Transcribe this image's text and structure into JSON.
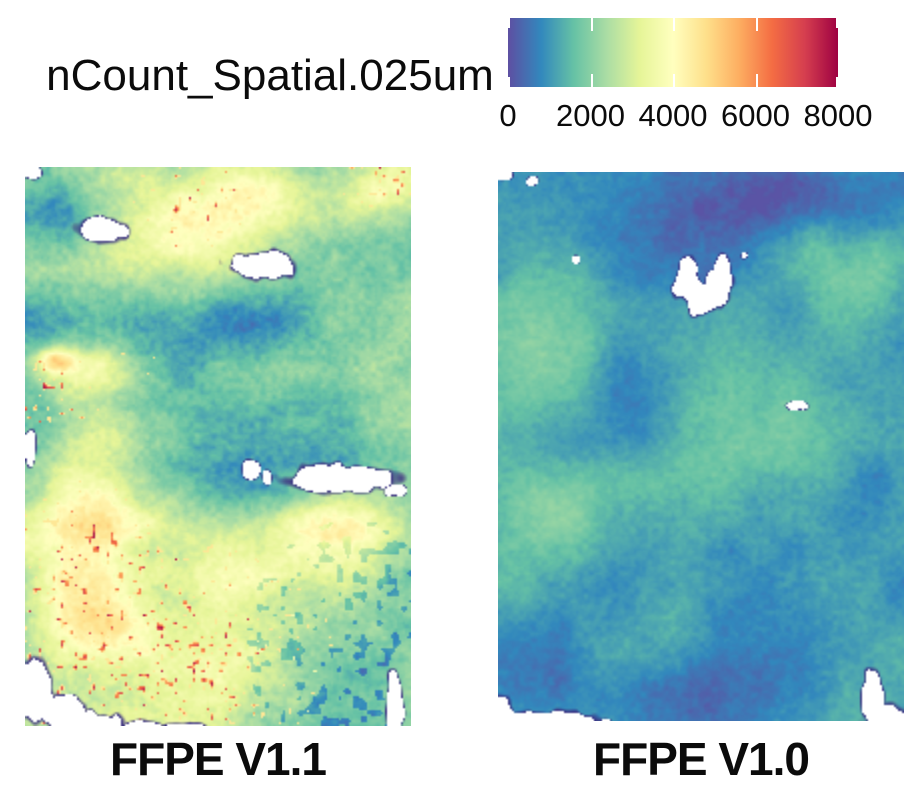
{
  "figure": {
    "title": "nCount_Spatial.025um",
    "colorbar": {
      "min": 0,
      "max": 8000,
      "ticks": [
        0,
        2000,
        4000,
        6000,
        8000
      ],
      "tick_labels": [
        "0",
        "2000",
        "4000",
        "6000",
        "8000"
      ],
      "palette_name": "Spectral (reversed)",
      "colors": [
        "#5E4FA2",
        "#3288BD",
        "#66C2A5",
        "#ABDDA4",
        "#E6F598",
        "#FFFFBF",
        "#FEE08B",
        "#FDAE61",
        "#F46D43",
        "#D53E4F",
        "#9E0142"
      ],
      "hole_outline_color": "#3A2F82",
      "hole_fill_color": "#FFFFFF"
    },
    "panels": [
      {
        "id": "ffpe_v11",
        "label": "FFPE V1.1",
        "canvas_id": "p0",
        "typical_count_est": 2100,
        "high_count_est": 8000,
        "render": {
          "seed": 11,
          "base": 2100,
          "amp": 1100,
          "grain": 700,
          "sx": 5,
          "sy": 11,
          "blobs": [
            [
              0.43,
              0.1,
              0.22,
              0.1,
              1900
            ],
            [
              0.6,
              0.04,
              0.14,
              0.06,
              1400
            ],
            [
              0.92,
              0.03,
              0.12,
              0.06,
              1500
            ],
            [
              0.08,
              0.05,
              0.1,
              0.07,
              -1000
            ],
            [
              0.3,
              0.3,
              0.45,
              0.09,
              -900
            ],
            [
              0.14,
              0.36,
              0.16,
              0.045,
              1800
            ],
            [
              0.078,
              0.345,
              0.05,
              0.022,
              2400
            ],
            [
              0.6,
              0.52,
              0.35,
              0.16,
              -900
            ],
            [
              0.17,
              0.6,
              0.2,
              0.14,
              1800
            ],
            [
              0.8,
              0.66,
              0.18,
              0.09,
              2300
            ],
            [
              0.38,
              0.86,
              0.3,
              0.16,
              1800
            ],
            [
              0.12,
              0.78,
              0.14,
              0.12,
              1500
            ],
            [
              0.85,
              0.92,
              0.22,
              0.14,
              -500
            ],
            [
              0.5,
              0.7,
              0.12,
              0.08,
              900
            ],
            [
              0.02,
              0.55,
              0.06,
              0.1,
              -800
            ]
          ],
          "speckles": {
            "regions": [
              [
                0.32,
                0.88,
                0.34,
                0.15,
                1.0
              ],
              [
                0.15,
                0.72,
                0.17,
                0.12,
                0.8
              ],
              [
                0.08,
                0.4,
                0.1,
                0.06,
                0.5
              ],
              [
                0.95,
                0.02,
                0.1,
                0.05,
                0.85
              ],
              [
                0.3,
                0.35,
                0.05,
                0.03,
                0.5
              ],
              [
                0.43,
                0.06,
                0.12,
                0.07,
                0.6
              ]
            ]
          },
          "dots": {
            "r": [
              0.85,
              0.85,
              0.28,
              0.22
            ],
            "t": 0.74,
            "d": -1000
          },
          "holes": [
            [
              0.195,
              0.11,
              0.06,
              0.022
            ],
            [
              0.61,
              0.175,
              0.08,
              0.026
            ],
            [
              0.584,
              0.541,
              0.022,
              0.016
            ],
            [
              0.625,
              0.553,
              0.013,
              0.011
            ],
            [
              0.815,
              0.556,
              0.135,
              0.024
            ],
            [
              0.955,
              0.577,
              0.028,
              0.01
            ],
            [
              0.01,
              0.502,
              0.015,
              0.028
            ],
            [
              0.012,
              0.006,
              0.03,
              0.012
            ],
            [
              0.02,
              0.935,
              0.045,
              0.055
            ],
            [
              0.1,
              0.975,
              0.055,
              0.03
            ],
            [
              0.185,
              1.0,
              0.065,
              0.026
            ],
            [
              0.3,
              1.005,
              0.05,
              0.018
            ],
            [
              0.4,
              1.012,
              0.06,
              0.02
            ],
            [
              0.955,
              0.96,
              0.022,
              0.055
            ]
          ]
        }
      },
      {
        "id": "ffpe_v10",
        "label": "FFPE V1.0",
        "canvas_id": "p1",
        "typical_count_est": 1200,
        "high_count_est": 2600,
        "render": {
          "seed": 27,
          "base": 1150,
          "amp": 520,
          "grain": 420,
          "sx": 7,
          "sy": 8,
          "blobs": [
            [
              0.6,
              0.05,
              0.45,
              0.12,
              -650
            ],
            [
              0.68,
              0.04,
              0.15,
              0.07,
              -650
            ],
            [
              0.5,
              0.17,
              0.22,
              0.1,
              -350
            ],
            [
              0.78,
              0.14,
              0.13,
              0.08,
              850
            ],
            [
              0.93,
              0.06,
              0.1,
              0.05,
              -350
            ],
            [
              0.93,
              0.18,
              0.08,
              0.08,
              500
            ],
            [
              0.12,
              0.3,
              0.17,
              0.16,
              650
            ],
            [
              0.33,
              0.38,
              0.1,
              0.09,
              -750
            ],
            [
              0.28,
              0.49,
              0.13,
              0.08,
              -700
            ],
            [
              0.32,
              0.55,
              0.26,
              0.1,
              700
            ],
            [
              0.65,
              0.45,
              0.22,
              0.12,
              450
            ],
            [
              0.12,
              0.63,
              0.12,
              0.08,
              650
            ],
            [
              0.95,
              0.55,
              0.1,
              0.09,
              -450
            ],
            [
              0.5,
              0.95,
              0.22,
              0.1,
              -700
            ],
            [
              0.1,
              0.92,
              0.13,
              0.1,
              -500
            ],
            [
              0.8,
              0.3,
              0.25,
              0.2,
              150
            ]
          ],
          "speckles": null,
          "dots": null,
          "holes": [
            [
              0.465,
              0.205,
              0.036,
              0.03
            ],
            [
              0.502,
              0.228,
              0.042,
              0.027
            ],
            [
              0.545,
              0.205,
              0.034,
              0.032
            ],
            [
              0.467,
              0.175,
              0.022,
              0.02
            ],
            [
              0.553,
              0.172,
              0.02,
              0.022
            ],
            [
              0.084,
              0.015,
              0.014,
              0.009
            ],
            [
              0.733,
              0.423,
              0.026,
              0.009
            ],
            [
              0.92,
              0.955,
              0.028,
              0.048
            ],
            [
              0.95,
              1.0,
              0.05,
              0.03
            ],
            [
              0.1,
              1.005,
              0.14,
              0.025
            ],
            [
              0.26,
              1.015,
              0.07,
              0.018
            ],
            [
              0.0,
              0.99,
              0.04,
              0.03
            ],
            [
              0.19,
              0.157,
              0.01,
              0.007
            ],
            [
              0.605,
              0.15,
              0.008,
              0.006
            ],
            [
              0.012,
              0.004,
              0.02,
              0.01
            ]
          ]
        }
      }
    ]
  },
  "chart_data": {
    "type": "heatmap",
    "title": "nCount_Spatial.025um",
    "subtitle": "",
    "legend_position": "top-right",
    "colorbar": {
      "label": "nCount_Spatial.025um",
      "range": [
        0,
        8000
      ],
      "tick_values": [
        0,
        2000,
        4000,
        6000,
        8000
      ],
      "palette": "Spectral (reversed: blue-purple low, crimson high)"
    },
    "panels": [
      {
        "label": "FFPE V1.1",
        "description": "Spatial UMI-count map of FFPE tissue, chemistry V1.1; mostly teal-green (~1500-3000 counts) with pale-yellow high-count patches (~3500-4500) across the upper-center, left-middle and lower-left, and sparse orange-red hotspots (~6000-8000) concentrated in the lower-left; dark blue horizontal band (~1000-1500) across the middle; several white unmeasured holes outlined in dark purple.",
        "approx_value_range": [
          500,
          8000
        ],
        "approx_median": 2300
      },
      {
        "label": "FFPE V1.0",
        "description": "Spatial UMI-count map of FFPE tissue, chemistry V1.0; uniformly blue (~800-1600 counts) with faint green patches (~2000-2500), dark indigo low-count regions (~300-700) at top and bottom, a white crescent-shaped hole near top-center and small white gaps at edges.",
        "approx_value_range": [
          300,
          2600
        ],
        "approx_median": 1200
      }
    ]
  }
}
